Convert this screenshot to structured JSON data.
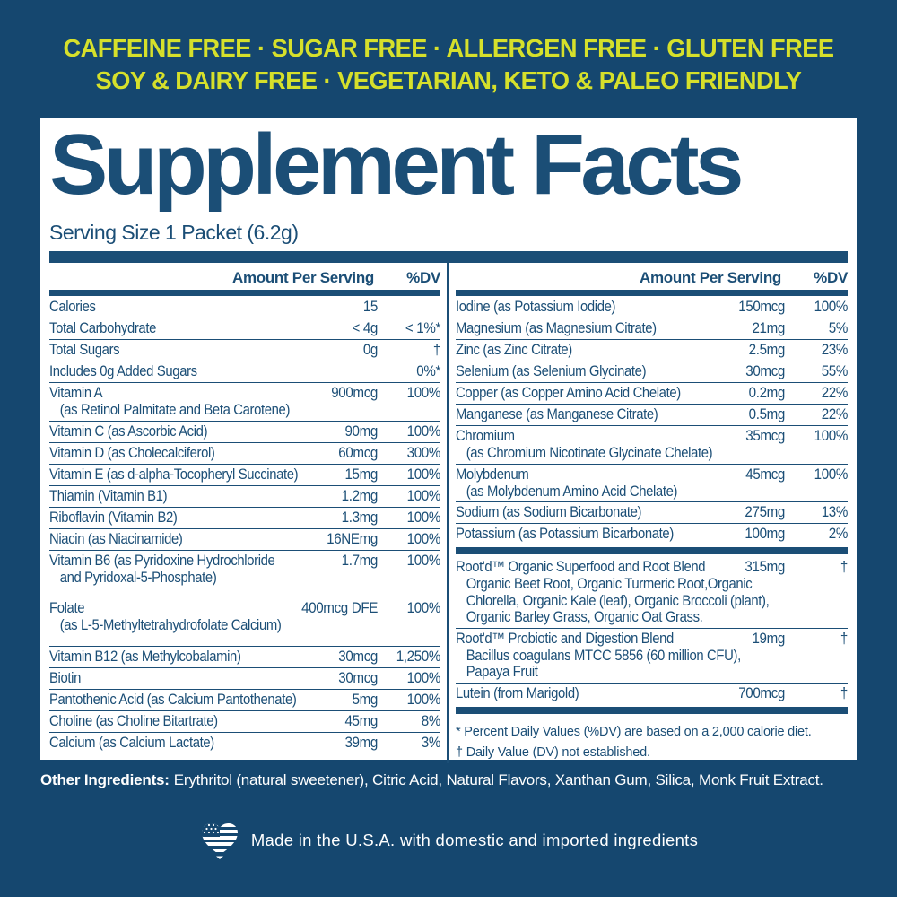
{
  "colors": {
    "background": "#15476F",
    "accent_yellow": "#D6E02B",
    "panel_white": "#FFFFFF",
    "navy_text": "#1B4E76"
  },
  "banner": {
    "line1": "CAFFEINE FREE · SUGAR FREE · ALLERGEN FREE · GLUTEN FREE",
    "line2": "SOY & DAIRY FREE · VEGETARIAN, KETO & PALEO FRIENDLY"
  },
  "supplement_facts": {
    "title": "Supplement Facts",
    "serving_size": "Serving Size 1 Packet (6.2g)",
    "header": {
      "amount": "Amount Per Serving",
      "dv": "%DV"
    },
    "left_rows": [
      {
        "name": "Calories",
        "amount": "15",
        "dv": ""
      },
      {
        "name": "Total Carbohydrate",
        "amount": "< 4g",
        "dv": "< 1%*"
      },
      {
        "name": "Total Sugars",
        "amount": "0g",
        "dv": "†"
      },
      {
        "name": "Includes 0g Added Sugars",
        "amount": "",
        "dv": "0%*"
      },
      {
        "name": "Vitamin A",
        "sub": "(as Retinol Palmitate and Beta Carotene)",
        "amount": "900mcg",
        "dv": "100%"
      },
      {
        "name": "Vitamin C (as Ascorbic Acid)",
        "amount": "90mg",
        "dv": "100%"
      },
      {
        "name": "Vitamin D (as Cholecalciferol)",
        "amount": "60mcg",
        "dv": "300%"
      },
      {
        "name": "Vitamin E (as d-alpha-Tocopheryl Succinate)",
        "amount": "15mg",
        "dv": "100%"
      },
      {
        "name": "Thiamin (Vitamin B1)",
        "amount": "1.2mg",
        "dv": "100%"
      },
      {
        "name": "Riboflavin (Vitamin B2)",
        "amount": "1.3mg",
        "dv": "100%"
      },
      {
        "name": "Niacin (as Niacinamide)",
        "amount": "16NEmg",
        "dv": "100%"
      },
      {
        "name": "Vitamin B6 (as Pyridoxine Hydrochloride",
        "sub": "and Pyridoxal-5-Phosphate)",
        "amount": "1.7mg",
        "dv": "100%"
      },
      {
        "name": "Folate",
        "sub": "(as L-5-Methyltetrahydrofolate Calcium)",
        "amount": "400mcg DFE",
        "dv": "100%",
        "pad": true
      },
      {
        "name": "Vitamin B12 (as Methylcobalamin)",
        "amount": "30mcg",
        "dv": "1,250%"
      },
      {
        "name": "Biotin",
        "amount": "30mcg",
        "dv": "100%"
      },
      {
        "name": "Pantothenic Acid (as Calcium Pantothenate)",
        "amount": "5mg",
        "dv": "100%"
      },
      {
        "name": "Choline (as Choline Bitartrate)",
        "amount": "45mg",
        "dv": "8%"
      },
      {
        "name": "Calcium (as Calcium Lactate)",
        "amount": "39mg",
        "dv": "3%"
      }
    ],
    "right_rows": [
      {
        "name": "Iodine (as Potassium Iodide)",
        "amount": "150mcg",
        "dv": "100%"
      },
      {
        "name": "Magnesium (as Magnesium Citrate)",
        "amount": "21mg",
        "dv": "5%"
      },
      {
        "name": "Zinc (as Zinc Citrate)",
        "amount": "2.5mg",
        "dv": "23%"
      },
      {
        "name": "Selenium (as Selenium Glycinate)",
        "amount": "30mcg",
        "dv": "55%"
      },
      {
        "name": "Copper (as Copper Amino Acid Chelate)",
        "amount": "0.2mg",
        "dv": "22%"
      },
      {
        "name": "Manganese (as Manganese Citrate)",
        "amount": "0.5mg",
        "dv": "22%"
      },
      {
        "name": "Chromium",
        "sub": "(as Chromium Nicotinate Glycinate Chelate)",
        "amount": "35mcg",
        "dv": "100%"
      },
      {
        "name": "Molybdenum",
        "sub": "(as Molybdenum Amino Acid Chelate)",
        "amount": "45mcg",
        "dv": "100%"
      },
      {
        "name": "Sodium (as Sodium Bicarbonate)",
        "amount": "275mg",
        "dv": "13%"
      },
      {
        "name": "Potassium (as Potassium Bicarbonate)",
        "amount": "100mg",
        "dv": "2%",
        "bar_after": true
      },
      {
        "name": "Root'd™ Organic Superfood and Root Blend",
        "sub": "Organic Beet Root, Organic Turmeric Root,Organic Chlorella, Organic Kale (leaf), Organic Broccoli (plant), Organic Barley Grass, Organic Oat Grass.",
        "amount": "315mg",
        "dv": "†"
      },
      {
        "name": "Root'd™ Probiotic and Digestion Blend",
        "sub": "Bacillus coagulans MTCC 5856 (60 million CFU), Papaya Fruit",
        "amount": "19mg",
        "dv": "†"
      },
      {
        "name": "Lutein (from Marigold)",
        "amount": "700mcg",
        "dv": "†",
        "bar_after": true
      }
    ],
    "footnotes": [
      "* Percent Daily Values (%DV) are based on a 2,000 calorie diet.",
      "† Daily Value (DV) not established."
    ]
  },
  "other_ingredients": {
    "label": "Other Ingredients:",
    "text": "Erythritol (natural sweetener), Citric Acid, Natural Flavors, Xanthan Gum, Silica, Monk Fruit Extract."
  },
  "footer": {
    "icon": "usa-flag-heart-icon",
    "text": "Made in the U.S.A. with domestic and imported ingredients"
  }
}
